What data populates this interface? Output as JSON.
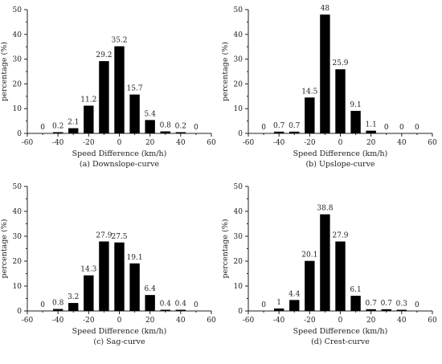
{
  "chart_data": [
    {
      "type": "bar",
      "caption": "(a)  Downslope-curve",
      "xlabel": "Speed Difference (km/h)",
      "ylabel": "percentage (%)",
      "xlim": [
        -60,
        60
      ],
      "ylim": [
        0,
        50
      ],
      "x_ticks": [
        "-60",
        "-40",
        "-20",
        "0",
        "20",
        "40",
        "60"
      ],
      "y_ticks": [
        "0",
        "10",
        "20",
        "30",
        "40",
        "50"
      ],
      "x": [
        -50,
        -40,
        -30,
        -20,
        -10,
        0,
        10,
        20,
        30,
        40,
        50
      ],
      "values": [
        0,
        0.2,
        2.1,
        11.2,
        29.2,
        35.2,
        15.7,
        5.4,
        0.8,
        0.2,
        0
      ],
      "value_labels": [
        "0",
        "0.2",
        "2.1",
        "11.2",
        "29.2",
        "35.2",
        "15.7",
        "5.4",
        "0.8",
        "0.2",
        "0"
      ]
    },
    {
      "type": "bar",
      "caption": "(b) Upslope-curve",
      "xlabel": "Speed Difference (km/h)",
      "ylabel": "percentage (%)",
      "xlim": [
        -60,
        60
      ],
      "ylim": [
        0,
        50
      ],
      "x_ticks": [
        "-60",
        "-40",
        "-20",
        "0",
        "20",
        "40",
        "60"
      ],
      "y_ticks": [
        "0",
        "10",
        "20",
        "30",
        "40",
        "50"
      ],
      "x": [
        -50,
        -40,
        -30,
        -20,
        -10,
        0,
        10,
        20,
        30,
        40,
        50
      ],
      "values": [
        0,
        0.7,
        0.7,
        14.5,
        48,
        25.9,
        9.1,
        1.1,
        0,
        0,
        0
      ],
      "value_labels": [
        "0",
        "0.7",
        "0.7",
        "14.5",
        "48",
        "25.9",
        "9.1",
        "1.1",
        "0",
        "0",
        "0"
      ]
    },
    {
      "type": "bar",
      "caption": "(c) Sag-curve",
      "xlabel": "Speed Difference (km/h)",
      "ylabel": "percentage (%)",
      "xlim": [
        -60,
        60
      ],
      "ylim": [
        0,
        50
      ],
      "x_ticks": [
        "-60",
        "-40",
        "-20",
        "0",
        "20",
        "40",
        "60"
      ],
      "y_ticks": [
        "0",
        "10",
        "20",
        "30",
        "40",
        "50"
      ],
      "x": [
        -50,
        -40,
        -30,
        -20,
        -10,
        0,
        10,
        20,
        30,
        40,
        50
      ],
      "values": [
        0,
        0.8,
        3.2,
        14.3,
        27.9,
        27.5,
        19.1,
        6.4,
        0.4,
        0.4,
        0
      ],
      "value_labels": [
        "0",
        "0.8",
        "3.2",
        "14.3",
        "27.9",
        "27.5",
        "19.1",
        "6.4",
        "0.4",
        "0.4",
        "0"
      ]
    },
    {
      "type": "bar",
      "caption": "(d) Crest-curve",
      "xlabel": "Speed Difference (km/h)",
      "ylabel": "percentage (%)",
      "xlim": [
        -60,
        60
      ],
      "ylim": [
        0,
        50
      ],
      "x_ticks": [
        "-60",
        "-40",
        "-20",
        "0",
        "20",
        "40",
        "60"
      ],
      "y_ticks": [
        "0",
        "10",
        "20",
        "30",
        "40",
        "50"
      ],
      "x": [
        -50,
        -40,
        -30,
        -20,
        -10,
        0,
        10,
        20,
        30,
        40,
        50
      ],
      "values": [
        0,
        1,
        4.4,
        20.1,
        38.8,
        27.9,
        6.1,
        0.7,
        0.7,
        0.3,
        0
      ],
      "value_labels": [
        "0",
        "1",
        "4.4",
        "20.1",
        "38.8",
        "27.9",
        "6.1",
        "0.7",
        "0.7",
        "0.3",
        "0"
      ]
    }
  ],
  "style": {
    "bar_color": "#000000",
    "axis_color": "#222222",
    "text_color": "#222222",
    "background": "#ffffff"
  }
}
